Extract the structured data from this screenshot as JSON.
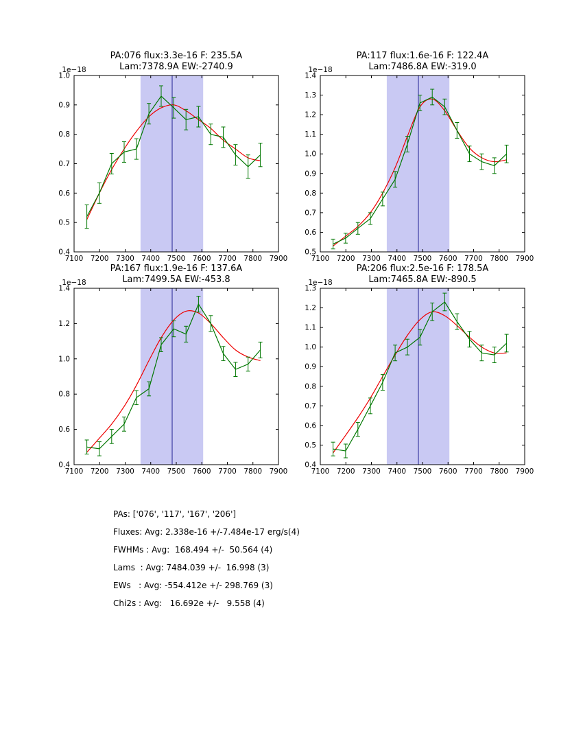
{
  "figure": {
    "background": "#ffffff",
    "colors": {
      "data_line": "#007700",
      "fit_line": "#ee0000",
      "band_fill": "#c9c9f3",
      "center_line": "#202090",
      "axis": "#000000",
      "text": "#000000"
    }
  },
  "summary": {
    "lines": [
      "PAs: ['076', '117', '167', '206']",
      "Fluxes: Avg: 2.338e-16 +/-7.484e-17 erg/s(4)",
      "FWHMs : Avg:  168.494 +/-  50.564 (4)",
      "Lams  : Avg: 7484.039 +/-  16.998 (3)",
      "EWs   : Avg: -554.412e +/- 298.769 (3)",
      "Chi2s : Avg:   16.692e +/-   9.558 (4)"
    ]
  },
  "chart_data": [
    {
      "type": "line",
      "title_line1": "PA:076 flux:3.3e-16 F: 235.5A",
      "title_line2": "Lam:7378.9A EW:-2740.9",
      "xlim": [
        7100,
        7900
      ],
      "ylim": [
        0.4,
        1.0
      ],
      "xticks": [
        7100,
        7200,
        7300,
        7400,
        7500,
        7600,
        7700,
        7800,
        7900
      ],
      "yticks": [
        0.4,
        0.5,
        0.6,
        0.7,
        0.8,
        0.9,
        1.0
      ],
      "y_offset_label": "1e−18",
      "grid": false,
      "band": [
        7360,
        7605
      ],
      "center_line": 7484,
      "series": [
        {
          "name": "spectrum-with-errorbars",
          "x": [
            7150,
            7199,
            7247,
            7296,
            7344,
            7393,
            7441,
            7490,
            7538,
            7587,
            7635,
            7684,
            7732,
            7781,
            7829
          ],
          "y": [
            0.52,
            0.6,
            0.7,
            0.74,
            0.75,
            0.87,
            0.93,
            0.89,
            0.85,
            0.86,
            0.8,
            0.79,
            0.73,
            0.69,
            0.73
          ],
          "yerr": [
            0.04,
            0.035,
            0.035,
            0.035,
            0.035,
            0.035,
            0.035,
            0.035,
            0.035,
            0.035,
            0.035,
            0.035,
            0.035,
            0.04,
            0.04
          ]
        },
        {
          "name": "gaussian-fit",
          "x": [
            7150,
            7199,
            7247,
            7296,
            7344,
            7393,
            7441,
            7490,
            7538,
            7587,
            7635,
            7684,
            7732,
            7781,
            7829
          ],
          "y": [
            0.51,
            0.6,
            0.68,
            0.75,
            0.81,
            0.86,
            0.89,
            0.9,
            0.88,
            0.85,
            0.82,
            0.78,
            0.75,
            0.72,
            0.71
          ]
        }
      ]
    },
    {
      "type": "line",
      "title_line1": "PA:117 flux:1.6e-16 F: 122.4A",
      "title_line2": "Lam:7486.8A EW:-319.0",
      "xlim": [
        7100,
        7900
      ],
      "ylim": [
        0.5,
        1.4
      ],
      "xticks": [
        7100,
        7200,
        7300,
        7400,
        7500,
        7600,
        7700,
        7800,
        7900
      ],
      "yticks": [
        0.5,
        0.6,
        0.7,
        0.8,
        0.9,
        1.0,
        1.1,
        1.2,
        1.3,
        1.4
      ],
      "y_offset_label": "1e−18",
      "grid": false,
      "band": [
        7360,
        7605
      ],
      "center_line": 7484,
      "series": [
        {
          "name": "spectrum-with-errorbars",
          "x": [
            7150,
            7199,
            7247,
            7296,
            7344,
            7393,
            7441,
            7490,
            7538,
            7587,
            7635,
            7684,
            7732,
            7781,
            7829
          ],
          "y": [
            0.54,
            0.57,
            0.62,
            0.67,
            0.77,
            0.87,
            1.05,
            1.26,
            1.29,
            1.24,
            1.12,
            1.0,
            0.96,
            0.94,
            1.0
          ],
          "yerr": [
            0.025,
            0.025,
            0.03,
            0.03,
            0.035,
            0.04,
            0.04,
            0.04,
            0.04,
            0.04,
            0.04,
            0.04,
            0.04,
            0.04,
            0.045
          ]
        },
        {
          "name": "gaussian-fit",
          "x": [
            7150,
            7199,
            7247,
            7296,
            7344,
            7393,
            7441,
            7490,
            7538,
            7587,
            7635,
            7684,
            7732,
            7781,
            7829
          ],
          "y": [
            0.53,
            0.58,
            0.63,
            0.7,
            0.8,
            0.93,
            1.09,
            1.24,
            1.28,
            1.22,
            1.12,
            1.03,
            0.98,
            0.96,
            0.97
          ]
        }
      ]
    },
    {
      "type": "line",
      "title_line1": "PA:167 flux:1.9e-16 F: 137.6A",
      "title_line2": "Lam:7499.5A EW:-453.8",
      "xlim": [
        7100,
        7900
      ],
      "ylim": [
        0.4,
        1.4
      ],
      "xticks": [
        7100,
        7200,
        7300,
        7400,
        7500,
        7600,
        7700,
        7800,
        7900
      ],
      "yticks": [
        0.4,
        0.6,
        0.8,
        1.0,
        1.2,
        1.4
      ],
      "y_offset_label": "1e−18",
      "grid": false,
      "band": [
        7360,
        7605
      ],
      "center_line": 7484,
      "series": [
        {
          "name": "spectrum-with-errorbars",
          "x": [
            7150,
            7199,
            7247,
            7296,
            7344,
            7393,
            7441,
            7490,
            7538,
            7587,
            7635,
            7684,
            7732,
            7781,
            7829
          ],
          "y": [
            0.5,
            0.49,
            0.56,
            0.63,
            0.78,
            0.83,
            1.08,
            1.17,
            1.14,
            1.31,
            1.2,
            1.03,
            0.94,
            0.97,
            1.05
          ],
          "yerr": [
            0.04,
            0.04,
            0.04,
            0.04,
            0.04,
            0.04,
            0.04,
            0.045,
            0.045,
            0.045,
            0.045,
            0.04,
            0.04,
            0.04,
            0.045
          ]
        },
        {
          "name": "gaussian-fit",
          "x": [
            7150,
            7199,
            7247,
            7296,
            7344,
            7393,
            7441,
            7490,
            7538,
            7587,
            7635,
            7684,
            7732,
            7781,
            7829
          ],
          "y": [
            0.47,
            0.55,
            0.63,
            0.73,
            0.85,
            0.99,
            1.12,
            1.22,
            1.27,
            1.26,
            1.2,
            1.12,
            1.05,
            1.01,
            0.99
          ]
        }
      ]
    },
    {
      "type": "line",
      "title_line1": "PA:206 flux:2.5e-16 F: 178.5A",
      "title_line2": "Lam:7465.8A EW:-890.5",
      "xlim": [
        7100,
        7900
      ],
      "ylim": [
        0.4,
        1.3
      ],
      "xticks": [
        7100,
        7200,
        7300,
        7400,
        7500,
        7600,
        7700,
        7800,
        7900
      ],
      "yticks": [
        0.4,
        0.5,
        0.6,
        0.7,
        0.8,
        0.9,
        1.0,
        1.1,
        1.2,
        1.3
      ],
      "y_offset_label": "1e−18",
      "grid": false,
      "band": [
        7360,
        7605
      ],
      "center_line": 7484,
      "series": [
        {
          "name": "spectrum-with-errorbars",
          "x": [
            7150,
            7199,
            7247,
            7296,
            7344,
            7393,
            7441,
            7490,
            7538,
            7587,
            7635,
            7684,
            7732,
            7781,
            7829
          ],
          "y": [
            0.48,
            0.47,
            0.58,
            0.7,
            0.82,
            0.97,
            1.0,
            1.05,
            1.18,
            1.23,
            1.13,
            1.04,
            0.97,
            0.96,
            1.02
          ],
          "yerr": [
            0.035,
            0.035,
            0.035,
            0.04,
            0.04,
            0.04,
            0.04,
            0.04,
            0.045,
            0.045,
            0.04,
            0.04,
            0.04,
            0.04,
            0.045
          ]
        },
        {
          "name": "gaussian-fit",
          "x": [
            7150,
            7199,
            7247,
            7296,
            7344,
            7393,
            7441,
            7490,
            7538,
            7587,
            7635,
            7684,
            7732,
            7781,
            7829
          ],
          "y": [
            0.46,
            0.55,
            0.64,
            0.74,
            0.85,
            0.96,
            1.06,
            1.14,
            1.18,
            1.16,
            1.11,
            1.05,
            1.0,
            0.97,
            0.97
          ]
        }
      ]
    }
  ]
}
